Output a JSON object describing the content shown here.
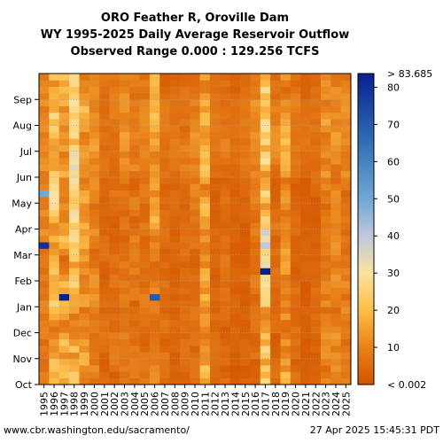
{
  "chart_data": {
    "type": "heatmap",
    "title_lines": [
      "ORO Feather R, Oroville Dam",
      "WY 1995-2025 Daily Average Reservoir Outflow",
      "Observed Range 0.000 : 129.256 TCFS"
    ],
    "x_categories": [
      "1995",
      "1996",
      "1997",
      "1998",
      "1999",
      "2000",
      "2001",
      "2002",
      "2003",
      "2004",
      "2005",
      "2006",
      "2007",
      "2008",
      "2009",
      "2010",
      "2011",
      "2012",
      "2013",
      "2014",
      "2015",
      "2016",
      "2017",
      "2018",
      "2019",
      "2020",
      "2021",
      "2022",
      "2023",
      "2024",
      "2025"
    ],
    "y_month_labels": [
      "Oct",
      "Nov",
      "Dec",
      "Jan",
      "Feb",
      "Mar",
      "Apr",
      "May",
      "Jun",
      "Jul",
      "Aug",
      "Sep"
    ],
    "colorbar": {
      "ticks": [
        10,
        20,
        30,
        40,
        50,
        60,
        70,
        80
      ],
      "top_label": "> 83.685",
      "bottom_label": "< 0.002",
      "min": 0,
      "max": 83.685
    },
    "grid": true,
    "approx_typical_flow_by_year_tcfs": [
      9,
      18,
      16,
      20,
      14,
      9,
      5,
      6,
      8,
      8,
      6,
      13,
      5,
      4,
      5,
      7,
      14,
      4,
      5,
      3,
      4,
      7,
      22,
      6,
      13,
      5,
      3,
      4,
      10,
      9,
      8
    ],
    "notable_peaks": [
      {
        "year": "1995",
        "month": "Mar",
        "value": 80
      },
      {
        "year": "1995",
        "month": "May",
        "value": 50
      },
      {
        "year": "1997",
        "month": "Jan",
        "value": 83.685
      },
      {
        "year": "2006",
        "month": "Jan",
        "value": 70
      },
      {
        "year": "2017",
        "month": "Feb",
        "value": 83.685
      },
      {
        "year": "2017",
        "month": "Mar",
        "value": 40
      }
    ]
  },
  "footer": {
    "source": "www.cbr.washington.edu/sacramento/",
    "timestamp": "27 Apr 2025 15:45:31 PDT"
  }
}
